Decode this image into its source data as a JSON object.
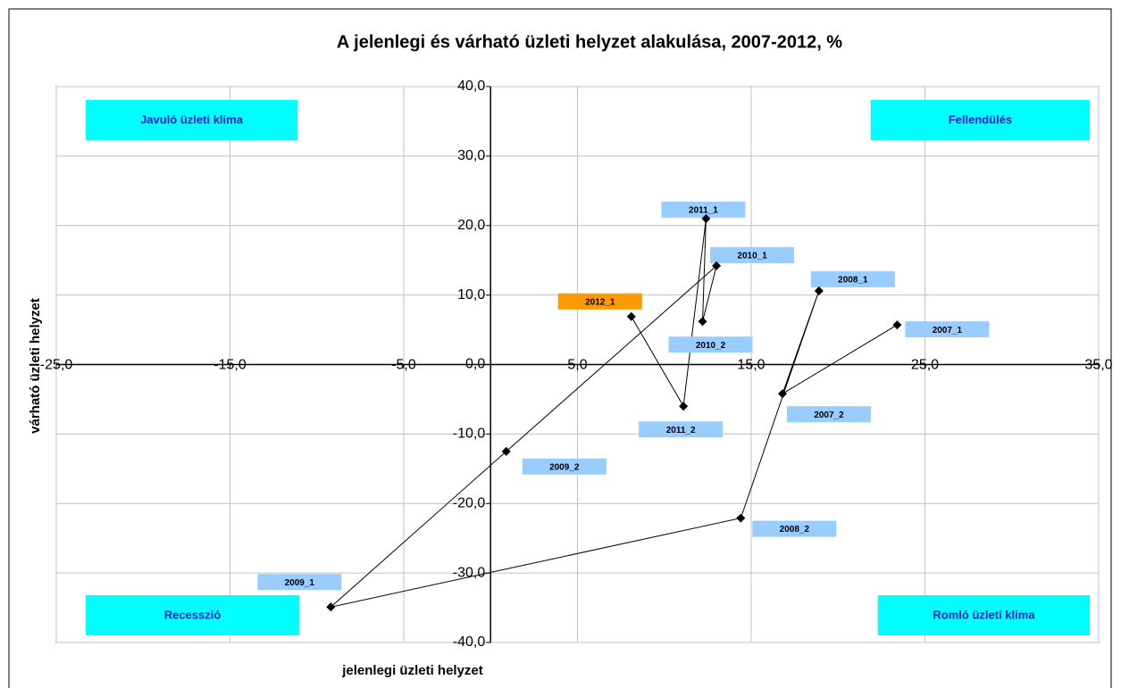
{
  "chart_data": {
    "type": "scatter",
    "title": "A jelenlegi és várható üzleti helyzet alakulása, 2007-2012, %",
    "x_label": "jelenlegi üzleti helyzet",
    "y_label": "várható üzleti helyzet",
    "x": [
      23.4,
      16.8,
      18.9,
      14.4,
      -9.2,
      0.9,
      13.0,
      12.2,
      12.4,
      11.1,
      8.1
    ],
    "values": [
      5.7,
      -4.2,
      10.6,
      -22.1,
      -34.9,
      -12.5,
      14.2,
      6.2,
      21.0,
      -6.0,
      6.9
    ],
    "point_labels": [
      "2007_1",
      "2007_2",
      "2008_1",
      "2008_2",
      "2009_1",
      "2009_2",
      "2010_1",
      "2010_2",
      "2011_1",
      "2011_2",
      "2012_1"
    ],
    "label_colors": [
      "#99ccff",
      "#99ccff",
      "#99ccff",
      "#99ccff",
      "#99ccff",
      "#99ccff",
      "#99ccff",
      "#99ccff",
      "#99ccff",
      "#99ccff",
      "#ff9900"
    ],
    "color": "#000000",
    "xlim": [
      -25,
      35
    ],
    "ylim": [
      -40,
      40
    ],
    "xticks": [
      {
        "value": -25,
        "label": "-25,0"
      },
      {
        "value": -15,
        "label": "-15,0"
      },
      {
        "value": -5,
        "label": "-5,0"
      },
      {
        "value": 5,
        "label": "5,0"
      },
      {
        "value": 15,
        "label": "15,0"
      },
      {
        "value": 25,
        "label": "25,0"
      },
      {
        "value": 35,
        "label": "35,0"
      }
    ],
    "yticks": [
      {
        "value": -40,
        "label": "-40,0"
      },
      {
        "value": -30,
        "label": "-30,0"
      },
      {
        "value": -20,
        "label": "-20,0"
      },
      {
        "value": -10,
        "label": "-10,0"
      },
      {
        "value": 0,
        "label": "0,0"
      },
      {
        "value": 10,
        "label": "10,0"
      },
      {
        "value": 20,
        "label": "20,0"
      },
      {
        "value": 30,
        "label": "30,0"
      },
      {
        "value": 40,
        "label": "40,0"
      }
    ],
    "grid": true,
    "quadrant_labels": [
      "Javuló üzleti klima",
      "Fellendülés",
      "Recesszió",
      "Romló üzleti klima"
    ],
    "quadrant_color": "#00ffff"
  }
}
